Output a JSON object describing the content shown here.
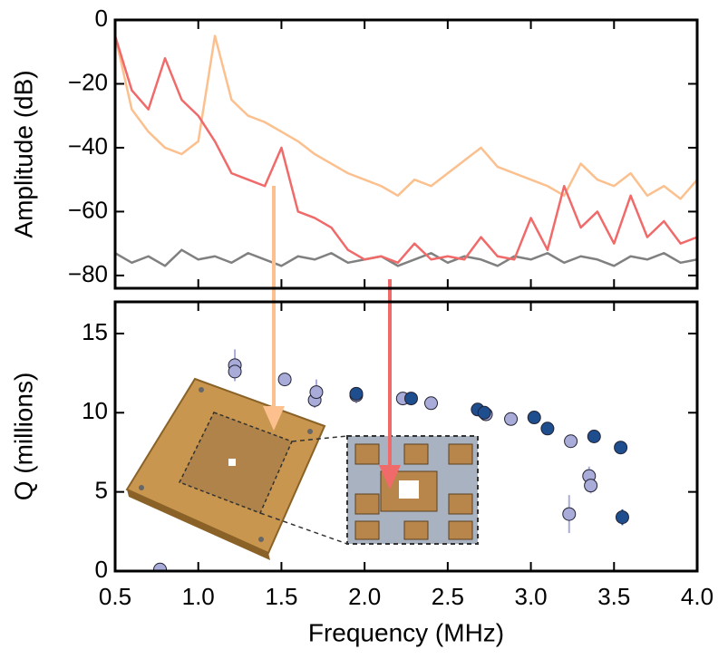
{
  "chart_data": [
    {
      "type": "line",
      "ylabel": "Amplitude (dB)",
      "x": [
        0.5,
        0.6,
        0.7,
        0.8,
        0.9,
        1.0,
        1.1,
        1.2,
        1.3,
        1.4,
        1.5,
        1.6,
        1.7,
        1.8,
        1.9,
        2.0,
        2.1,
        2.2,
        2.3,
        2.4,
        2.5,
        2.6,
        2.7,
        2.8,
        2.9,
        3.0,
        3.1,
        3.2,
        3.3,
        3.4,
        3.5,
        3.6,
        3.7,
        3.8,
        3.9,
        4.0
      ],
      "series": [
        {
          "color": "#808080",
          "values": [
            -73,
            -76,
            -74,
            -77,
            -72,
            -75,
            -74,
            -76,
            -73,
            -75,
            -77,
            -74,
            -75,
            -73,
            -76,
            -75,
            -74,
            -77,
            -75,
            -73,
            -76,
            -74,
            -75,
            -77,
            -74,
            -75,
            -73,
            -76,
            -74,
            -75,
            -77,
            -74,
            -75,
            -73,
            -76,
            -75
          ]
        },
        {
          "color": "#fcc08e",
          "values": [
            -5,
            -28,
            -35,
            -40,
            -42,
            -38,
            -5,
            -25,
            -30,
            -32,
            -35,
            -38,
            -42,
            -45,
            -48,
            -50,
            -52,
            -55,
            -50,
            -52,
            -48,
            -44,
            -40,
            -46,
            -48,
            -50,
            -52,
            -55,
            -45,
            -50,
            -52,
            -48,
            -55,
            -52,
            -56,
            -50
          ]
        },
        {
          "color": "#f06a6a",
          "values": [
            -5,
            -22,
            -28,
            -12,
            -25,
            -30,
            -38,
            -48,
            -50,
            -52,
            -40,
            -60,
            -62,
            -65,
            -72,
            -75,
            -74,
            -76,
            -70,
            -75,
            -74,
            -75,
            -68,
            -74,
            -75,
            -62,
            -72,
            -52,
            -65,
            -60,
            -70,
            -55,
            -68,
            -63,
            -70,
            -68
          ]
        }
      ],
      "xlim": [
        0.5,
        4.0
      ],
      "ylim": [
        -84,
        0
      ],
      "yticks": [
        0,
        {
          "value": -20,
          "label": "−20"
        },
        {
          "value": -40,
          "label": "−40"
        },
        {
          "value": -60,
          "label": "−60"
        },
        {
          "value": -80,
          "label": "−80"
        }
      ]
    },
    {
      "type": "scatter",
      "xlabel": "Frequency (MHz)",
      "ylabel": "Q (millions)",
      "series": [
        {
          "color": "#a9acd9",
          "x": [
            0.77,
            1.22,
            1.22,
            1.52,
            1.7,
            1.71,
            1.95,
            2.23,
            2.4,
            2.73,
            2.88,
            3.24,
            3.23,
            3.35,
            3.36
          ],
          "values": [
            0.1,
            13.0,
            12.6,
            12.1,
            10.8,
            11.3,
            11.1,
            10.9,
            10.6,
            9.9,
            9.6,
            8.2,
            3.6,
            6.0,
            5.4
          ],
          "errors": [
            0.1,
            1.0,
            0.6,
            0.2,
            0.5,
            0.8,
            0.5,
            0.3,
            0.2,
            0.2,
            0.2,
            0.4,
            1.2,
            0.6,
            0.5
          ]
        },
        {
          "color": "#1f4e8f",
          "x": [
            1.95,
            2.28,
            2.68,
            2.72,
            3.02,
            3.1,
            3.38,
            3.54,
            3.55
          ],
          "values": [
            11.2,
            10.9,
            10.2,
            10.0,
            9.7,
            9.0,
            8.5,
            7.8,
            3.4
          ],
          "errors": [
            0.2,
            0.2,
            0.2,
            0.2,
            0.2,
            0.2,
            0.2,
            0.2,
            0.5
          ]
        }
      ],
      "xlim": [
        0.5,
        4.0
      ],
      "ylim": [
        0,
        17
      ],
      "xticks": [
        0.5,
        {
          "value": 1,
          "label": "1.0"
        },
        1.5,
        {
          "value": 2,
          "label": "2.0"
        },
        2.5,
        {
          "value": 3,
          "label": "3.0"
        },
        3.5,
        {
          "value": 4,
          "label": "4.0"
        }
      ],
      "yticks": [
        0,
        5,
        10,
        15
      ]
    }
  ]
}
